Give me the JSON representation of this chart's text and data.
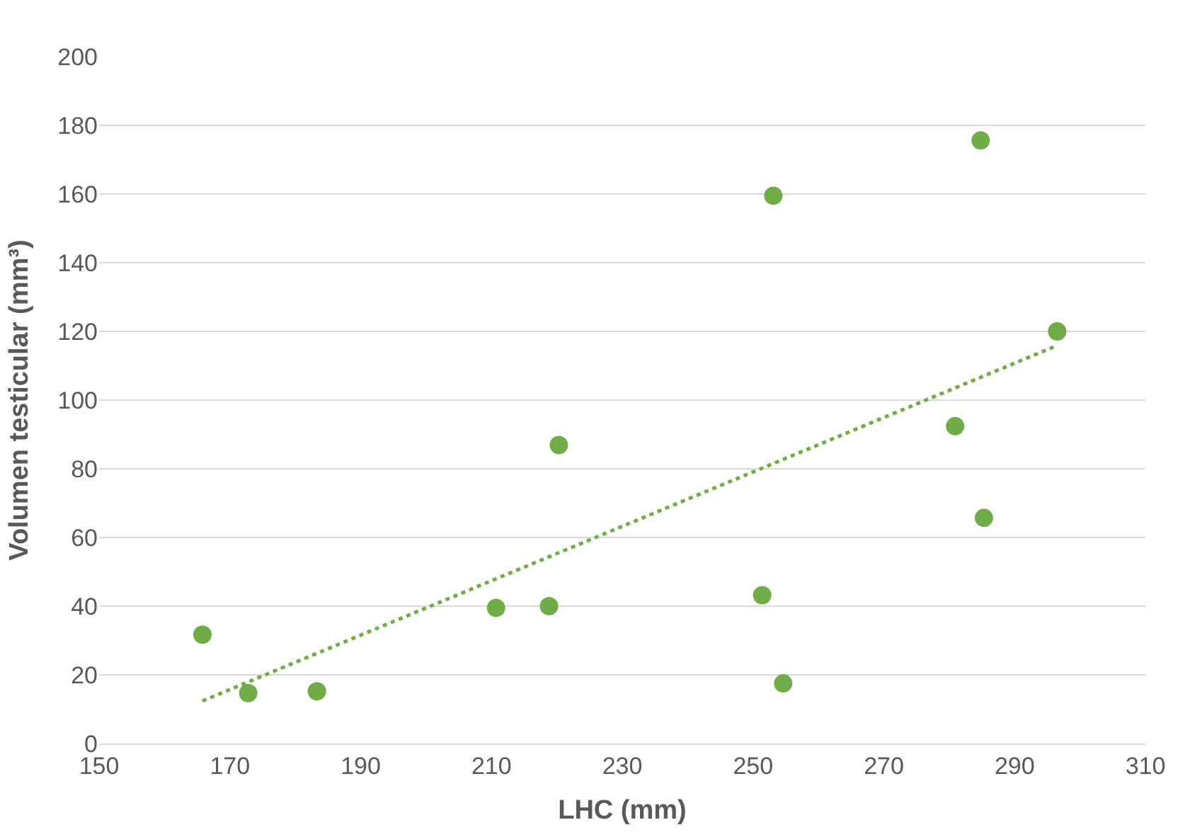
{
  "chart_data": {
    "type": "scatter",
    "xlabel": "LHC (mm)",
    "ylabel": "Volumen testicular (mm³)",
    "xlim": [
      150,
      310
    ],
    "xticks": [
      150,
      170,
      190,
      210,
      230,
      250,
      270,
      290,
      310
    ],
    "ylim": [
      0,
      200
    ],
    "yticks": [
      0,
      20,
      40,
      60,
      80,
      100,
      120,
      140,
      160,
      180,
      200
    ],
    "grid": "y",
    "series": [
      {
        "marker": "circle",
        "color": "#70ad47",
        "x": [
          165.8,
          172.8,
          183.3,
          210.7,
          218.8,
          220.3,
          251.4,
          254.6,
          253.1,
          284.8,
          280.9,
          285.3,
          296.5
        ],
        "values": [
          31.7,
          14.7,
          15.2,
          39.5,
          40,
          86.9,
          43.2,
          17.5,
          159.5,
          175.6,
          92.4,
          65.7,
          120
        ]
      },
      {
        "type": "line",
        "line_style": "dotted",
        "color": "#70ad47",
        "x": [
          165.8,
          296.5
        ],
        "values": [
          12.4,
          115.9
        ]
      }
    ]
  }
}
